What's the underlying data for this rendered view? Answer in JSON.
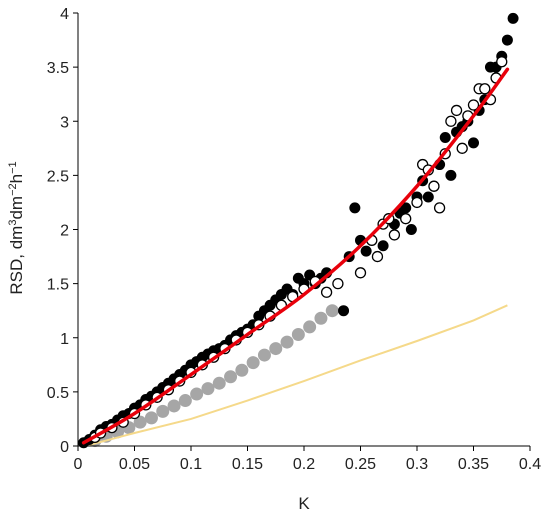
{
  "chart_data": {
    "type": "scatter",
    "title": "",
    "xlabel": "K",
    "ylabel": {
      "base": "RSD, dm",
      "exp1": "3",
      "mid": "dm",
      "exp2": "−2",
      "mid2": "h",
      "exp3": "−1"
    },
    "xlim": [
      0,
      0.4
    ],
    "ylim": [
      0,
      4
    ],
    "x_ticks": [
      0,
      0.05,
      0.1,
      0.15,
      0.2,
      0.25,
      0.3,
      0.35,
      0.4
    ],
    "x_tick_labels": [
      "0",
      "0.05",
      "0.1",
      "0.15",
      "0.2",
      "0.25",
      "0.3",
      "0.35",
      "0.4"
    ],
    "y_ticks": [
      0,
      0.5,
      1,
      1.5,
      2,
      2.5,
      3,
      3.5,
      4
    ],
    "y_tick_labels": [
      "0",
      "0.5",
      "1",
      "1.5",
      "2",
      "2.5",
      "3",
      "3.5",
      "4"
    ],
    "grid": false,
    "legend": "none",
    "colors": {
      "filled": "#000000",
      "open": "#ffffff",
      "gray": "#a6a6a6",
      "fit_line": "#e8000b",
      "reference_line": "#f5d98a"
    },
    "series": [
      {
        "style": "filled-circle",
        "points": [
          [
            0.005,
            0.03
          ],
          [
            0.01,
            0.06
          ],
          [
            0.015,
            0.1
          ],
          [
            0.02,
            0.15
          ],
          [
            0.025,
            0.18
          ],
          [
            0.03,
            0.2
          ],
          [
            0.035,
            0.24
          ],
          [
            0.04,
            0.28
          ],
          [
            0.045,
            0.3
          ],
          [
            0.05,
            0.35
          ],
          [
            0.055,
            0.38
          ],
          [
            0.06,
            0.43
          ],
          [
            0.065,
            0.46
          ],
          [
            0.07,
            0.5
          ],
          [
            0.075,
            0.54
          ],
          [
            0.08,
            0.58
          ],
          [
            0.085,
            0.62
          ],
          [
            0.09,
            0.66
          ],
          [
            0.095,
            0.7
          ],
          [
            0.1,
            0.75
          ],
          [
            0.105,
            0.78
          ],
          [
            0.11,
            0.82
          ],
          [
            0.115,
            0.85
          ],
          [
            0.12,
            0.88
          ],
          [
            0.125,
            0.9
          ],
          [
            0.13,
            0.93
          ],
          [
            0.135,
            0.98
          ],
          [
            0.14,
            1.02
          ],
          [
            0.145,
            1.05
          ],
          [
            0.15,
            1.08
          ],
          [
            0.155,
            1.12
          ],
          [
            0.16,
            1.2
          ],
          [
            0.165,
            1.25
          ],
          [
            0.17,
            1.3
          ],
          [
            0.175,
            1.35
          ],
          [
            0.18,
            1.4
          ],
          [
            0.185,
            1.45
          ],
          [
            0.19,
            1.4
          ],
          [
            0.195,
            1.55
          ],
          [
            0.2,
            1.5
          ],
          [
            0.205,
            1.58
          ],
          [
            0.21,
            1.5
          ],
          [
            0.215,
            1.55
          ],
          [
            0.22,
            1.6
          ],
          [
            0.235,
            1.25
          ],
          [
            0.24,
            1.75
          ],
          [
            0.245,
            2.2
          ],
          [
            0.25,
            1.9
          ],
          [
            0.255,
            1.8
          ],
          [
            0.27,
            1.85
          ],
          [
            0.28,
            2.05
          ],
          [
            0.285,
            2.15
          ],
          [
            0.29,
            2.2
          ],
          [
            0.295,
            2.0
          ],
          [
            0.3,
            2.3
          ],
          [
            0.305,
            2.45
          ],
          [
            0.31,
            2.3
          ],
          [
            0.315,
            2.4
          ],
          [
            0.32,
            2.6
          ],
          [
            0.325,
            2.85
          ],
          [
            0.33,
            2.5
          ],
          [
            0.335,
            2.9
          ],
          [
            0.34,
            2.95
          ],
          [
            0.345,
            3.0
          ],
          [
            0.35,
            2.8
          ],
          [
            0.355,
            3.1
          ],
          [
            0.36,
            3.2
          ],
          [
            0.365,
            3.5
          ],
          [
            0.37,
            3.5
          ],
          [
            0.375,
            3.6
          ],
          [
            0.38,
            3.75
          ],
          [
            0.385,
            3.95
          ]
        ]
      },
      {
        "style": "open-circle",
        "points": [
          [
            0.015,
            0.08
          ],
          [
            0.02,
            0.12
          ],
          [
            0.03,
            0.17
          ],
          [
            0.04,
            0.22
          ],
          [
            0.05,
            0.3
          ],
          [
            0.06,
            0.38
          ],
          [
            0.07,
            0.45
          ],
          [
            0.08,
            0.52
          ],
          [
            0.09,
            0.6
          ],
          [
            0.1,
            0.68
          ],
          [
            0.11,
            0.75
          ],
          [
            0.12,
            0.82
          ],
          [
            0.13,
            0.9
          ],
          [
            0.14,
            0.98
          ],
          [
            0.15,
            1.05
          ],
          [
            0.16,
            1.12
          ],
          [
            0.17,
            1.2
          ],
          [
            0.18,
            1.3
          ],
          [
            0.19,
            1.38
          ],
          [
            0.2,
            1.45
          ],
          [
            0.21,
            1.52
          ],
          [
            0.22,
            1.42
          ],
          [
            0.23,
            1.5
          ],
          [
            0.25,
            1.6
          ],
          [
            0.26,
            1.9
          ],
          [
            0.265,
            1.75
          ],
          [
            0.27,
            2.05
          ],
          [
            0.275,
            2.1
          ],
          [
            0.28,
            1.95
          ],
          [
            0.29,
            2.1
          ],
          [
            0.3,
            2.25
          ],
          [
            0.305,
            2.6
          ],
          [
            0.31,
            2.55
          ],
          [
            0.315,
            2.4
          ],
          [
            0.32,
            2.2
          ],
          [
            0.325,
            2.7
          ],
          [
            0.33,
            3.0
          ],
          [
            0.335,
            3.1
          ],
          [
            0.34,
            2.75
          ],
          [
            0.345,
            3.05
          ],
          [
            0.35,
            3.15
          ],
          [
            0.355,
            3.3
          ],
          [
            0.36,
            3.3
          ],
          [
            0.365,
            3.2
          ],
          [
            0.37,
            3.4
          ],
          [
            0.375,
            3.55
          ]
        ]
      },
      {
        "style": "gray-circle",
        "points": [
          [
            0.015,
            0.05
          ],
          [
            0.025,
            0.09
          ],
          [
            0.035,
            0.13
          ],
          [
            0.045,
            0.17
          ],
          [
            0.055,
            0.22
          ],
          [
            0.065,
            0.26
          ],
          [
            0.075,
            0.32
          ],
          [
            0.085,
            0.37
          ],
          [
            0.095,
            0.42
          ],
          [
            0.105,
            0.48
          ],
          [
            0.115,
            0.53
          ],
          [
            0.125,
            0.58
          ],
          [
            0.135,
            0.64
          ],
          [
            0.145,
            0.7
          ],
          [
            0.155,
            0.77
          ],
          [
            0.165,
            0.84
          ],
          [
            0.175,
            0.9
          ],
          [
            0.185,
            0.96
          ],
          [
            0.195,
            1.03
          ],
          [
            0.205,
            1.1
          ],
          [
            0.215,
            1.18
          ],
          [
            0.225,
            1.25
          ]
        ]
      },
      {
        "style": "fit-line",
        "points": [
          [
            0.005,
            0.03
          ],
          [
            0.05,
            0.3
          ],
          [
            0.1,
            0.66
          ],
          [
            0.15,
            1.03
          ],
          [
            0.2,
            1.4
          ],
          [
            0.25,
            1.85
          ],
          [
            0.3,
            2.4
          ],
          [
            0.35,
            3.05
          ],
          [
            0.38,
            3.48
          ]
        ]
      },
      {
        "style": "reference-line",
        "points": [
          [
            0.01,
            0.01
          ],
          [
            0.05,
            0.12
          ],
          [
            0.1,
            0.25
          ],
          [
            0.15,
            0.42
          ],
          [
            0.2,
            0.6
          ],
          [
            0.25,
            0.79
          ],
          [
            0.3,
            0.97
          ],
          [
            0.35,
            1.16
          ],
          [
            0.38,
            1.3
          ]
        ]
      }
    ]
  }
}
